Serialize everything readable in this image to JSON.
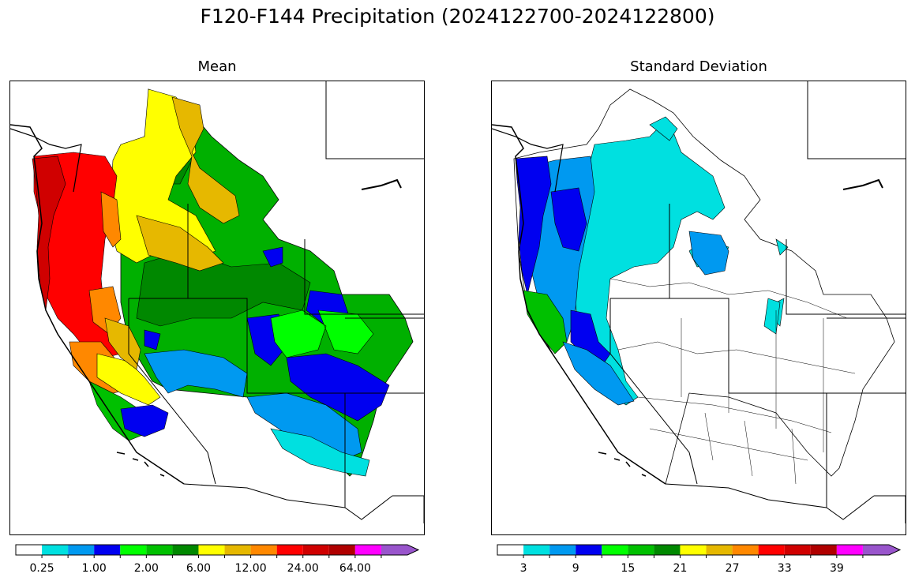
{
  "title": "F120-F144 Precipitation (2024122700-2024122800)",
  "panels": [
    {
      "title": "Mean",
      "colorbar": {
        "colors": [
          "#ffffff",
          "#00e0e0",
          "#0099f0",
          "#0000f0",
          "#00ff00",
          "#00c000",
          "#008800",
          "#ffff00",
          "#e6b800",
          "#ff8800",
          "#ff0000",
          "#d00000",
          "#b00000",
          "#ff00ff",
          "#9955cc"
        ],
        "tick_labels": [
          "0.25",
          "1.00",
          "2.00",
          "6.00",
          "12.00",
          "24.00",
          "64.00"
        ],
        "extend": "max"
      }
    },
    {
      "title": "Standard Deviation",
      "colorbar": {
        "colors": [
          "#ffffff",
          "#00e0e0",
          "#0099f0",
          "#0000f0",
          "#00ff00",
          "#00c000",
          "#008800",
          "#ffff00",
          "#e6b800",
          "#ff8800",
          "#ff0000",
          "#d00000",
          "#b00000",
          "#ff00ff",
          "#9955cc"
        ],
        "tick_labels": [
          "3",
          "9",
          "15",
          "21",
          "27",
          "33",
          "39"
        ],
        "extend": "max"
      }
    }
  ]
}
